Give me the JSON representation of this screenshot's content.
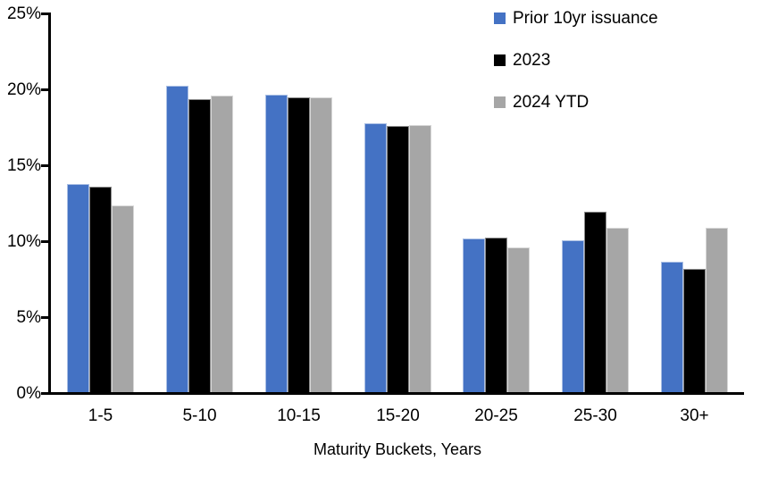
{
  "chart_data": {
    "type": "bar",
    "title": "",
    "categories": [
      "1-5",
      "5-10",
      "10-15",
      "15-20",
      "20-25",
      "25-30",
      "30+"
    ],
    "series": [
      {
        "name": "Prior 10yr issuance",
        "color": "#4472C4",
        "values": [
          13.7,
          20.2,
          19.6,
          17.7,
          10.1,
          10.0,
          8.6
        ]
      },
      {
        "name": "2023",
        "color": "#000000",
        "values": [
          13.5,
          19.3,
          19.4,
          17.5,
          10.2,
          11.9,
          8.1
        ]
      },
      {
        "name": "2024 YTD",
        "color": "#A6A6A6",
        "values": [
          12.3,
          19.5,
          19.4,
          17.6,
          9.5,
          10.8,
          10.8
        ]
      }
    ],
    "xlabel": "Maturity Buckets, Years",
    "ylabel": "",
    "ylim": [
      0,
      25
    ],
    "ytick_step": 5,
    "ytick_suffix": "%",
    "legend_position": "top-right",
    "grid": false,
    "axis_color": "#000000",
    "background": "#FFFFFF"
  }
}
